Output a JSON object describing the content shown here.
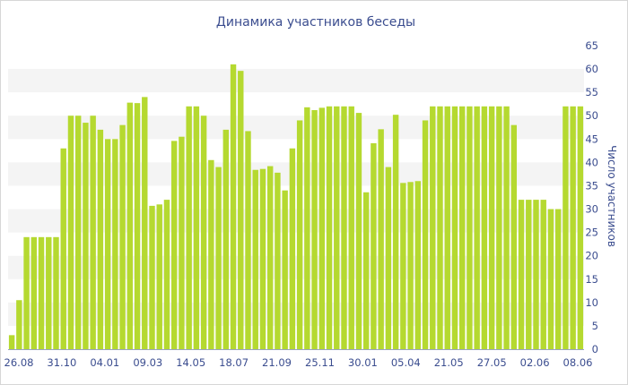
{
  "chart_data": {
    "type": "bar",
    "title": "Динамика участников беседы",
    "ylabel": "Число участников",
    "xlabel": "",
    "ylim": [
      0,
      65
    ],
    "y_ticks": [
      0,
      5,
      10,
      15,
      20,
      25,
      30,
      35,
      40,
      45,
      50,
      55,
      60,
      65
    ],
    "y_axis_position": "right",
    "grid": "alternating horizontal bands",
    "legend": "none",
    "bar_color": "#b5d930",
    "x_tick_labels": [
      "26.08",
      "31.10",
      "04.01",
      "09.03",
      "14.05",
      "18.07",
      "21.09",
      "25.11",
      "30.01",
      "05.04",
      "21.05",
      "27.05",
      "02.06",
      "08.06"
    ],
    "values": [
      3,
      10.5,
      24,
      24,
      24,
      24,
      24,
      43,
      50,
      50,
      48.5,
      50,
      47,
      45,
      45,
      48,
      52.8,
      52.7,
      54,
      30.7,
      31,
      32,
      44.6,
      45.5,
      52,
      52,
      50,
      40.5,
      39,
      47,
      61,
      59.6,
      46.7,
      38.4,
      38.6,
      39.2,
      37.8,
      34,
      43,
      49,
      51.8,
      51.2,
      51.7,
      52,
      52,
      52,
      52,
      50.6,
      33.6,
      44.1,
      47.1,
      39.0,
      50.2,
      35.6,
      35.8,
      36,
      49,
      52,
      52,
      52,
      52,
      52,
      52,
      52,
      52,
      52,
      52,
      52,
      48,
      32,
      32,
      32,
      32,
      30,
      30,
      52,
      52,
      52
    ]
  }
}
